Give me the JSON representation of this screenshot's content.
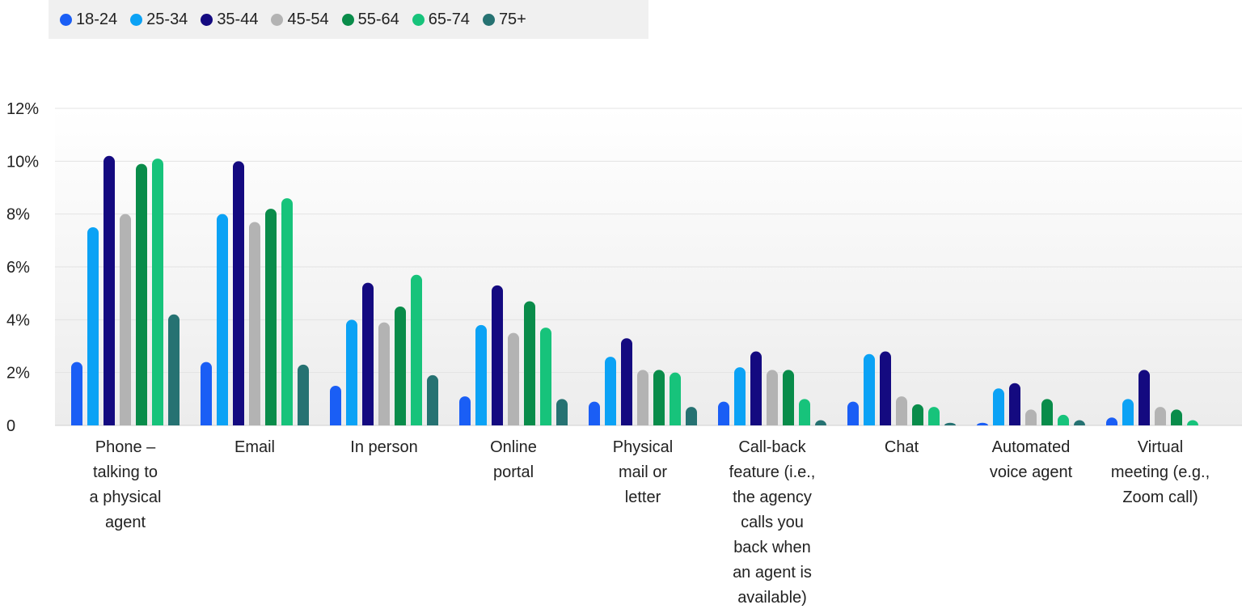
{
  "chart_data": {
    "type": "bar",
    "title": "",
    "xlabel": "",
    "ylabel": "",
    "ylim": [
      0,
      12
    ],
    "yticks": [
      "0",
      "2%",
      "4%",
      "6%",
      "8%",
      "10%",
      "12%"
    ],
    "grid": true,
    "legend_position": "top-left",
    "categories": [
      [
        "Phone –",
        "talking to",
        "a physical",
        "agent"
      ],
      [
        "Email"
      ],
      [
        "In person"
      ],
      [
        "Online",
        "portal"
      ],
      [
        "Physical",
        "mail or",
        "letter"
      ],
      [
        "Call-back",
        "feature (i.e.,",
        "the agency",
        "calls you",
        "back when",
        "an agent is",
        "available)"
      ],
      [
        "Chat"
      ],
      [
        "Automated",
        "voice agent"
      ],
      [
        "Virtual",
        "meeting (e.g.,",
        "Zoom call)"
      ]
    ],
    "series": [
      {
        "name": "18-24",
        "color": "#1a5ef5",
        "values": [
          2.4,
          2.4,
          1.5,
          1.1,
          0.9,
          0.9,
          0.9,
          0.1,
          0.3
        ]
      },
      {
        "name": "25-34",
        "color": "#0ba2f5",
        "values": [
          7.5,
          8.0,
          4.0,
          3.8,
          2.6,
          2.2,
          2.7,
          1.4,
          1.0
        ]
      },
      {
        "name": "35-44",
        "color": "#140a80",
        "values": [
          10.2,
          10.0,
          5.4,
          5.3,
          3.3,
          2.8,
          2.8,
          1.6,
          2.1
        ]
      },
      {
        "name": "45-54",
        "color": "#b3b3b3",
        "values": [
          8.0,
          7.7,
          3.9,
          3.5,
          2.1,
          2.1,
          1.1,
          0.6,
          0.7
        ]
      },
      {
        "name": "55-64",
        "color": "#098c4a",
        "values": [
          9.9,
          8.2,
          4.5,
          4.7,
          2.1,
          2.1,
          0.8,
          1.0,
          0.6
        ]
      },
      {
        "name": "65-74",
        "color": "#17c37b",
        "values": [
          10.1,
          8.6,
          5.7,
          3.7,
          2.0,
          1.0,
          0.7,
          0.4,
          0.2
        ]
      },
      {
        "name": "75+",
        "color": "#267272",
        "values": [
          4.2,
          2.3,
          1.9,
          1.0,
          0.7,
          0.2,
          0.1,
          0.2,
          0.0
        ]
      }
    ]
  }
}
